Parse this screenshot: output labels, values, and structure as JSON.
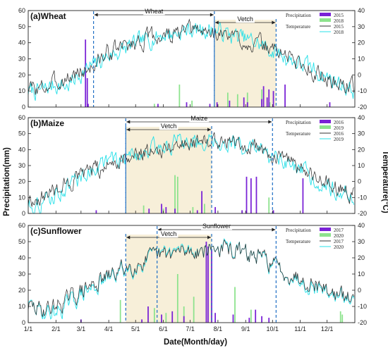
{
  "colors": {
    "precip_a": "#7a22d6",
    "precip_b": "#8de38d",
    "temp_a": "#333333",
    "temp_b": "#27e0e8",
    "band": "#f7efd9",
    "dashed": "#1f6fc4"
  },
  "figure": {
    "xlabel": "Date(Month/day)",
    "ylabel_left": "Precipitation(mm)",
    "ylabel_right": "Temperature(°C)"
  },
  "chart_data": [
    {
      "type": "line",
      "panel_label": "(a)Wheat",
      "x_ticks": [
        "1/1",
        "2/1",
        "3/1",
        "4/1",
        "5/1",
        "6/1",
        "7/1",
        "8/1",
        "9/1",
        "10/1",
        "11/1",
        "12/1"
      ],
      "y_left_ticks": [
        0,
        10,
        20,
        30,
        40,
        50,
        60
      ],
      "y_right_ticks": [
        -20,
        -10,
        0,
        10,
        20,
        30,
        40
      ],
      "ylim_left": [
        0,
        60
      ],
      "ylim_right": [
        -20,
        40
      ],
      "periods": [
        {
          "name": "Wheat",
          "start": "3/15",
          "end": "7/28"
        },
        {
          "name": "Vetch",
          "start": "7/28",
          "end": "10/5",
          "shaded": true
        }
      ],
      "legend": {
        "precipitation_title": "Precipitation",
        "temperature_title": "Temperature",
        "precipitation": [
          "2015",
          "2018"
        ],
        "temperature": [
          "2015",
          "2018"
        ]
      },
      "precip_a": [
        [
          65,
          42
        ],
        [
          67,
          18
        ],
        [
          68,
          2
        ],
        [
          146,
          2
        ],
        [
          178,
          3
        ],
        [
          204,
          2
        ],
        [
          212,
          3
        ],
        [
          226,
          4
        ],
        [
          242,
          6
        ],
        [
          246,
          3
        ],
        [
          262,
          5
        ],
        [
          264,
          13
        ],
        [
          268,
          6
        ],
        [
          270,
          11
        ],
        [
          275,
          10
        ],
        [
          288,
          14
        ],
        [
          338,
          3
        ]
      ],
      "precip_b": [
        [
          142,
          2
        ],
        [
          170,
          14
        ],
        [
          184,
          4
        ],
        [
          224,
          9
        ],
        [
          235,
          8
        ],
        [
          246,
          9
        ],
        [
          262,
          11
        ],
        [
          271,
          3
        ]
      ],
      "temp_a": [
        [
          1,
          -8
        ],
        [
          15,
          -9
        ],
        [
          30,
          -5
        ],
        [
          45,
          -2
        ],
        [
          60,
          2
        ],
        [
          75,
          6
        ],
        [
          90,
          14
        ],
        [
          105,
          17
        ],
        [
          120,
          20
        ],
        [
          135,
          23
        ],
        [
          150,
          24
        ],
        [
          165,
          25
        ],
        [
          180,
          27
        ],
        [
          195,
          27
        ],
        [
          210,
          26
        ],
        [
          225,
          24
        ],
        [
          240,
          22
        ],
        [
          255,
          19
        ],
        [
          270,
          17
        ],
        [
          285,
          14
        ],
        [
          300,
          9
        ],
        [
          315,
          4
        ],
        [
          330,
          -1
        ],
        [
          345,
          -5
        ],
        [
          365,
          -7
        ]
      ],
      "temp_b": [
        [
          1,
          -10
        ],
        [
          15,
          -10
        ],
        [
          30,
          -6
        ],
        [
          45,
          -7
        ],
        [
          60,
          1
        ],
        [
          75,
          6
        ],
        [
          90,
          12
        ],
        [
          105,
          15
        ],
        [
          120,
          19
        ],
        [
          135,
          22
        ],
        [
          150,
          25
        ],
        [
          165,
          26
        ],
        [
          180,
          28
        ],
        [
          195,
          28
        ],
        [
          210,
          28
        ],
        [
          225,
          25
        ],
        [
          240,
          23
        ],
        [
          255,
          20
        ],
        [
          270,
          16
        ],
        [
          285,
          12
        ],
        [
          300,
          8
        ],
        [
          315,
          5
        ],
        [
          330,
          0
        ],
        [
          345,
          -4
        ],
        [
          365,
          -10
        ]
      ]
    },
    {
      "type": "line",
      "panel_label": "(b)Maize",
      "x_ticks": [
        "1/1",
        "2/1",
        "3/1",
        "4/1",
        "5/1",
        "6/1",
        "7/1",
        "8/1",
        "9/1",
        "10/1",
        "11/1",
        "12/1"
      ],
      "y_left_ticks": [
        0,
        10,
        20,
        30,
        40,
        50,
        60
      ],
      "y_right_ticks": [
        -20,
        -10,
        0,
        10,
        20,
        30,
        40
      ],
      "ylim_left": [
        0,
        60
      ],
      "ylim_right": [
        -20,
        40
      ],
      "periods": [
        {
          "name": "Maize",
          "start": "4/20",
          "end": "10/1"
        },
        {
          "name": "Vetch",
          "start": "4/20",
          "end": "7/25",
          "shaded": true
        }
      ],
      "legend": {
        "precipitation_title": "Precipitation",
        "temperature_title": "Temperature",
        "precipitation": [
          "2016",
          "2019"
        ],
        "temperature": [
          "2016",
          "2019"
        ]
      },
      "precip_a": [
        [
          77,
          2
        ],
        [
          136,
          3
        ],
        [
          150,
          6
        ],
        [
          155,
          4
        ],
        [
          165,
          3
        ],
        [
          190,
          2
        ],
        [
          195,
          14
        ],
        [
          210,
          4
        ],
        [
          240,
          2
        ],
        [
          245,
          23
        ],
        [
          250,
          22
        ],
        [
          256,
          23
        ],
        [
          275,
          2
        ],
        [
          308,
          22
        ]
      ],
      "precip_b": [
        [
          130,
          5
        ],
        [
          152,
          3
        ],
        [
          165,
          24
        ],
        [
          168,
          23
        ],
        [
          185,
          4
        ],
        [
          198,
          6
        ],
        [
          240,
          2
        ],
        [
          270,
          10
        ]
      ],
      "temp_a": [
        [
          1,
          -12
        ],
        [
          15,
          -10
        ],
        [
          30,
          -5
        ],
        [
          45,
          -2
        ],
        [
          60,
          3
        ],
        [
          75,
          6
        ],
        [
          90,
          10
        ],
        [
          105,
          15
        ],
        [
          120,
          17
        ],
        [
          135,
          19
        ],
        [
          150,
          21
        ],
        [
          165,
          23
        ],
        [
          180,
          25
        ],
        [
          195,
          25
        ],
        [
          210,
          26
        ],
        [
          225,
          27
        ],
        [
          240,
          25
        ],
        [
          255,
          21
        ],
        [
          270,
          18
        ],
        [
          285,
          13
        ],
        [
          300,
          9
        ],
        [
          315,
          4
        ],
        [
          330,
          0
        ],
        [
          345,
          -3
        ],
        [
          365,
          -8
        ]
      ],
      "temp_b": [
        [
          1,
          -14
        ],
        [
          15,
          -14
        ],
        [
          30,
          -9
        ],
        [
          45,
          -3
        ],
        [
          60,
          3
        ],
        [
          75,
          9
        ],
        [
          90,
          12
        ],
        [
          105,
          14
        ],
        [
          120,
          17
        ],
        [
          135,
          20
        ],
        [
          150,
          22
        ],
        [
          165,
          24
        ],
        [
          180,
          25
        ],
        [
          195,
          26
        ],
        [
          210,
          25
        ],
        [
          225,
          25
        ],
        [
          240,
          22
        ],
        [
          255,
          20
        ],
        [
          270,
          16
        ],
        [
          285,
          11
        ],
        [
          300,
          7
        ],
        [
          315,
          3
        ],
        [
          330,
          -1
        ],
        [
          345,
          -5
        ],
        [
          365,
          -10
        ]
      ]
    },
    {
      "type": "line",
      "panel_label": "(c)Sunflower",
      "x_ticks": [
        "1/1",
        "2/1",
        "3/1",
        "4/1",
        "5/1",
        "6/1",
        "7/1",
        "8/1",
        "9/1",
        "10/1",
        "11/1",
        "12/1"
      ],
      "y_left_ticks": [
        0,
        10,
        20,
        30,
        40,
        50,
        60
      ],
      "y_right_ticks": [
        -20,
        -10,
        0,
        10,
        20,
        30,
        40
      ],
      "ylim_left": [
        0,
        60
      ],
      "ylim_right": [
        -20,
        40
      ],
      "periods": [
        {
          "name": "Sunflower",
          "start": "5/25",
          "end": "10/5"
        },
        {
          "name": "Vetch",
          "start": "4/20",
          "end": "7/25",
          "shaded": true
        }
      ],
      "legend": {
        "precipitation_title": "Precipitation",
        "temperature_title": "Temperature",
        "precipitation": [
          "2017",
          "2020"
        ],
        "temperature": [
          "2017",
          "2020"
        ]
      },
      "precip_a": [
        [
          60,
          2
        ],
        [
          128,
          2
        ],
        [
          135,
          10
        ],
        [
          150,
          5
        ],
        [
          162,
          7
        ],
        [
          175,
          4
        ],
        [
          200,
          50
        ],
        [
          202,
          47
        ],
        [
          206,
          45
        ],
        [
          210,
          6
        ],
        [
          230,
          5
        ],
        [
          248,
          3
        ],
        [
          255,
          8
        ],
        [
          262,
          4
        ],
        [
          270,
          3
        ]
      ],
      "precip_b": [
        [
          104,
          14
        ],
        [
          142,
          9
        ],
        [
          155,
          6
        ],
        [
          168,
          30
        ],
        [
          175,
          10
        ],
        [
          186,
          16
        ],
        [
          232,
          22
        ],
        [
          250,
          8
        ],
        [
          350,
          7
        ],
        [
          352,
          5
        ]
      ],
      "temp_a": [
        [
          1,
          -10
        ],
        [
          15,
          -12
        ],
        [
          30,
          -10
        ],
        [
          45,
          -6
        ],
        [
          60,
          -1
        ],
        [
          75,
          4
        ],
        [
          90,
          8
        ],
        [
          105,
          13
        ],
        [
          120,
          16
        ],
        [
          135,
          19
        ],
        [
          150,
          21
        ],
        [
          165,
          23
        ],
        [
          180,
          24
        ],
        [
          195,
          25
        ],
        [
          210,
          26
        ],
        [
          225,
          25
        ],
        [
          240,
          23
        ],
        [
          255,
          21
        ],
        [
          270,
          18
        ],
        [
          285,
          12
        ],
        [
          300,
          9
        ],
        [
          315,
          6
        ],
        [
          330,
          2
        ],
        [
          345,
          -3
        ],
        [
          365,
          -6
        ]
      ],
      "temp_b": [
        [
          1,
          -9
        ],
        [
          15,
          -13
        ],
        [
          30,
          -14
        ],
        [
          45,
          -9
        ],
        [
          60,
          -3
        ],
        [
          75,
          2
        ],
        [
          90,
          7
        ],
        [
          105,
          12
        ],
        [
          120,
          15
        ],
        [
          135,
          18
        ],
        [
          150,
          22
        ],
        [
          165,
          24
        ],
        [
          180,
          25
        ],
        [
          195,
          25
        ],
        [
          210,
          26
        ],
        [
          225,
          26
        ],
        [
          240,
          23
        ],
        [
          255,
          21
        ],
        [
          270,
          17
        ],
        [
          285,
          12
        ],
        [
          300,
          8
        ],
        [
          315,
          4
        ],
        [
          330,
          1
        ],
        [
          345,
          -4
        ],
        [
          365,
          -7
        ]
      ]
    }
  ]
}
